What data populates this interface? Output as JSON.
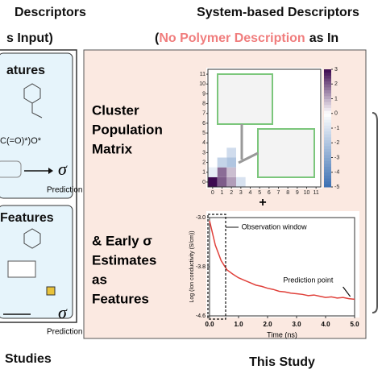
{
  "left": {
    "title1": "Descriptors",
    "title2": "s Input)",
    "box1_title": "atures",
    "smiles": "C(=O)*)O*",
    "sigma1": "σ",
    "pred1": "Prediction",
    "box2_title": "Features",
    "sigma2": "σ",
    "pred2": "Prediction",
    "footer": "Studies"
  },
  "right": {
    "title1": "System-based Descriptors",
    "title2": [
      "(",
      "No Polymer Description",
      "as In"
    ],
    "label1": [
      "Cluster",
      "Population",
      "Matrix"
    ],
    "plus": "+",
    "label2": [
      "& Early σ",
      "Estimates",
      "as",
      "Features"
    ],
    "footer": "This Study"
  },
  "chart_data": [
    {
      "type": "heatmap",
      "xticks": [
        0,
        1,
        2,
        3,
        4,
        5,
        6,
        7,
        8,
        9,
        10,
        11
      ],
      "yticks": [
        0,
        1,
        2,
        3,
        4,
        5,
        6,
        7,
        8,
        9,
        10,
        11
      ],
      "xlim": [
        -0.5,
        11.5
      ],
      "ylim": [
        -0.5,
        11.5
      ],
      "cells": [
        [
          0,
          0,
          3
        ],
        [
          1,
          0,
          2
        ],
        [
          2,
          0,
          1.2
        ],
        [
          1,
          1,
          1.8
        ],
        [
          2,
          1,
          0.8
        ],
        [
          1,
          2,
          -1.5
        ],
        [
          2,
          2,
          -2
        ],
        [
          0,
          1,
          -0.6
        ],
        [
          3,
          0,
          -1
        ],
        [
          2,
          3,
          -1.2
        ]
      ],
      "colorbar": {
        "lim": [
          -5,
          3
        ],
        "ticks": [
          3,
          2,
          1,
          0,
          -1,
          -2,
          -3,
          -4,
          -5
        ]
      },
      "colormap": {
        "low": "#3a6fb2",
        "mid": "#ffffff",
        "high": "#3d0a50"
      }
    },
    {
      "type": "line",
      "xlabel": "Time (ns)",
      "ylabel": "Log (Ion conductivity (S/cm))",
      "xlim": [
        0,
        5
      ],
      "ylim": [
        -4.6,
        -3.0
      ],
      "xticks": [
        {
          "value": 0,
          "label": "0.0"
        },
        {
          "value": 1,
          "label": "1.0"
        },
        {
          "value": 2,
          "label": "2.0"
        },
        {
          "value": 3,
          "label": "3.0"
        },
        {
          "value": 4,
          "label": "4.0"
        },
        {
          "value": 5,
          "label": "5.0"
        }
      ],
      "yticks": [
        {
          "value": -3,
          "label": "-3.0"
        },
        -3.8,
        -4.6
      ],
      "annotations": [
        "Observation window",
        "Prediction point"
      ],
      "color": "#e0403a",
      "x": [
        0,
        0.2,
        0.4,
        0.6,
        0.8,
        1.0,
        1.2,
        1.4,
        1.6,
        1.8,
        2.0,
        2.2,
        2.4,
        2.6,
        2.8,
        3.0,
        3.2,
        3.4,
        3.6,
        3.8,
        4.0,
        4.2,
        4.4,
        4.6,
        4.8,
        5.0
      ],
      "values": [
        -3.05,
        -3.45,
        -3.7,
        -3.85,
        -3.92,
        -3.98,
        -4.02,
        -4.06,
        -4.1,
        -4.12,
        -4.15,
        -4.17,
        -4.2,
        -4.21,
        -4.23,
        -4.24,
        -4.25,
        -4.27,
        -4.26,
        -4.28,
        -4.3,
        -4.29,
        -4.31,
        -4.3,
        -4.32,
        -4.33
      ]
    }
  ]
}
